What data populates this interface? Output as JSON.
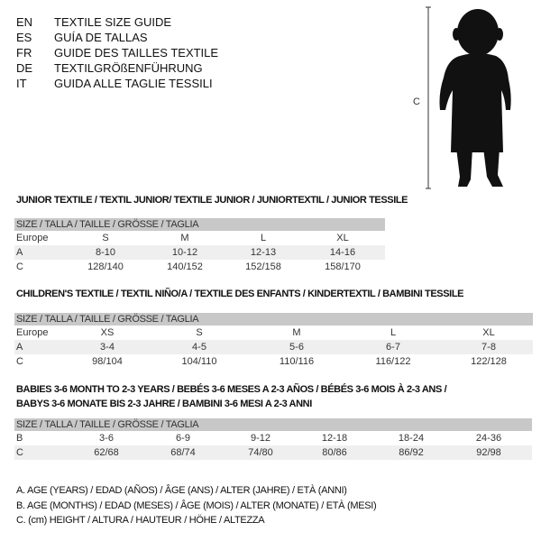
{
  "languages": [
    {
      "code": "EN",
      "text": "TEXTILE SIZE GUIDE"
    },
    {
      "code": "ES",
      "text": "GUÍA DE TALLAS"
    },
    {
      "code": "FR",
      "text": "GUIDE DES TAILLES TEXTILE"
    },
    {
      "code": "DE",
      "text": "TEXTILGRÖßENFÜHRUNG"
    },
    {
      "code": "IT",
      "text": "GUIDA ALLE TAGLIE TESSILI"
    }
  ],
  "figure": {
    "measure_label": "C"
  },
  "junior": {
    "title": "JUNIOR TEXTILE / TEXTIL JUNIOR/ TEXTILE JUNIOR / JUNIORTEXTIL / JUNIOR TESSILE",
    "header": "SIZE / TALLA / TAILLE / GRÖSSE / TAGLIA",
    "rows": [
      {
        "label": "Europe",
        "cells": [
          "S",
          "M",
          "L",
          "XL"
        ]
      },
      {
        "label": "A",
        "cells": [
          "8-10",
          "10-12",
          "12-13",
          "14-16"
        ]
      },
      {
        "label": "C",
        "cells": [
          "128/140",
          "140/152",
          "152/158",
          "158/170"
        ]
      }
    ]
  },
  "children": {
    "title": "CHILDREN'S TEXTILE / TEXTIL NIÑO/A / TEXTILE DES ENFANTS / KINDERTEXTIL / BAMBINI TESSILE",
    "header": "SIZE / TALLA / TAILLE / GRÖSSE / TAGLIA",
    "rows": [
      {
        "label": "Europe",
        "cells": [
          "XS",
          "S",
          "M",
          "L",
          "XL"
        ]
      },
      {
        "label": "A",
        "cells": [
          "3-4",
          "4-5",
          "5-6",
          "6-7",
          "7-8"
        ]
      },
      {
        "label": "C",
        "cells": [
          "98/104",
          "104/110",
          "110/116",
          "116/122",
          "122/128"
        ]
      }
    ]
  },
  "babies": {
    "title_line1": "BABIES 3-6 MONTH TO 2-3 YEARS / BEBÉS 3-6 MESES A 2-3 AÑOS / BÉBÉS 3-6 MOIS À 2-3 ANS /",
    "title_line2": "BABYS 3-6 MONATE BIS 2-3 JAHRE / BAMBINI 3-6 MESI A 2-3 ANNI",
    "header": "SIZE / TALLA / TAILLE / GRÖSSE / TAGLIA",
    "rows": [
      {
        "label": "B",
        "cells": [
          "3-6",
          "6-9",
          "9-12",
          "12-18",
          "18-24",
          "24-36"
        ]
      },
      {
        "label": "C",
        "cells": [
          "62/68",
          "68/74",
          "74/80",
          "80/86",
          "86/92",
          "92/98"
        ]
      }
    ]
  },
  "legend": [
    "A. AGE (YEARS) / EDAD (AÑOS) / ÂGE (ANS) / ALTER (JAHRE) / ETÀ (ANNI)",
    "B. AGE (MONTHS) / EDAD (MESES) / ÂGE (MOIS) / ALTER (MONATE) / ETÀ (MESI)",
    "C. (cm) HEIGHT / ALTURA / HAUTEUR / HÖHE / ALTEZZA"
  ]
}
